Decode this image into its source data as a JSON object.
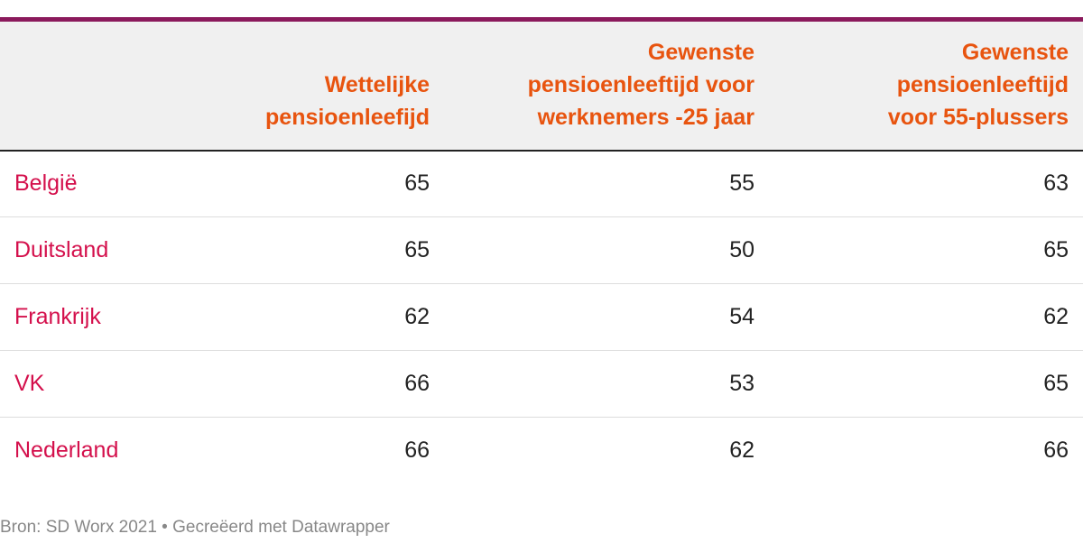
{
  "table": {
    "header": [
      "Wettelijke pensioenleefijd",
      "Gewenste pensioenleeftijd voor werknemers -25 jaar",
      "Gewenste pensioenleeftijd voor 55-plussers"
    ],
    "rows": [
      [
        "België",
        65,
        55,
        63
      ],
      [
        "Duitsland",
        65,
        50,
        65
      ],
      [
        "Frankrijk",
        62,
        54,
        62
      ],
      [
        "VK",
        66,
        53,
        65
      ],
      [
        "Nederland",
        66,
        62,
        66
      ]
    ]
  },
  "footer": "Bron: SD Worx 2021 • Gecreëerd met Datawrapper"
}
